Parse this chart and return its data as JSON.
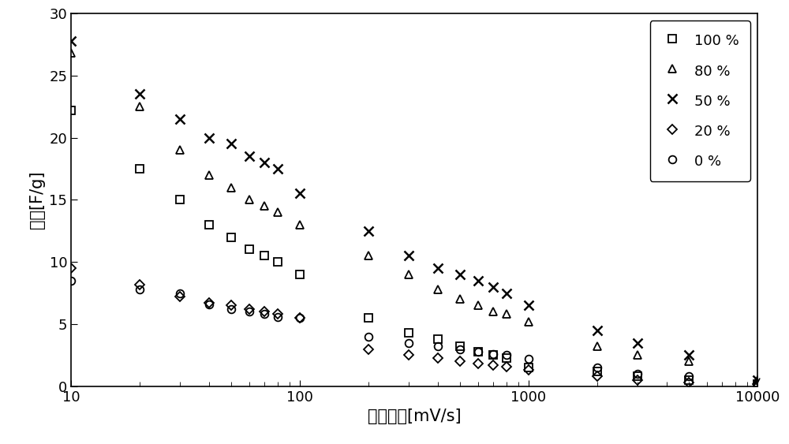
{
  "series": {
    "100%": {
      "marker": "s",
      "label": "100 %",
      "x": [
        10,
        20,
        30,
        40,
        50,
        60,
        70,
        80,
        100,
        200,
        300,
        400,
        500,
        600,
        700,
        800,
        1000,
        2000,
        3000,
        5000,
        10000
      ],
      "y": [
        22.2,
        17.5,
        15.0,
        13.0,
        12.0,
        11.0,
        10.5,
        10.0,
        9.0,
        5.5,
        4.3,
        3.8,
        3.2,
        2.8,
        2.5,
        2.3,
        1.5,
        1.2,
        0.8,
        0.5,
        0.2
      ]
    },
    "80%": {
      "marker": "^",
      "label": "80 %",
      "x": [
        10,
        20,
        30,
        40,
        50,
        60,
        70,
        80,
        100,
        200,
        300,
        400,
        500,
        600,
        700,
        800,
        1000,
        2000,
        3000,
        5000,
        10000
      ],
      "y": [
        26.8,
        22.5,
        19.0,
        17.0,
        16.0,
        15.0,
        14.5,
        14.0,
        13.0,
        10.5,
        9.0,
        7.8,
        7.0,
        6.5,
        6.0,
        5.8,
        5.2,
        3.2,
        2.5,
        2.0,
        0.5
      ]
    },
    "50%": {
      "marker": "x",
      "label": "50 %",
      "x": [
        10,
        20,
        30,
        40,
        50,
        60,
        70,
        80,
        100,
        200,
        300,
        400,
        500,
        600,
        700,
        800,
        1000,
        2000,
        3000,
        5000,
        10000
      ],
      "y": [
        27.8,
        23.5,
        21.5,
        20.0,
        19.5,
        18.5,
        18.0,
        17.5,
        15.5,
        12.5,
        10.5,
        9.5,
        9.0,
        8.5,
        8.0,
        7.5,
        6.5,
        4.5,
        3.5,
        2.5,
        0.5
      ]
    },
    "20%": {
      "marker": "D",
      "label": "20 %",
      "x": [
        10,
        20,
        30,
        40,
        50,
        60,
        70,
        80,
        100,
        200,
        300,
        400,
        500,
        600,
        700,
        800,
        1000,
        2000,
        3000,
        5000,
        10000
      ],
      "y": [
        9.5,
        8.2,
        7.2,
        6.7,
        6.5,
        6.2,
        6.0,
        5.8,
        5.5,
        3.0,
        2.5,
        2.3,
        2.0,
        1.8,
        1.7,
        1.6,
        1.3,
        0.8,
        0.5,
        0.3,
        0.15
      ]
    },
    "0%": {
      "marker": "o",
      "label": "0 %",
      "x": [
        10,
        20,
        30,
        40,
        50,
        60,
        70,
        80,
        100,
        200,
        300,
        400,
        500,
        600,
        700,
        800,
        1000,
        2000,
        3000,
        5000,
        10000
      ],
      "y": [
        8.5,
        7.8,
        7.5,
        6.6,
        6.2,
        6.0,
        5.8,
        5.6,
        5.5,
        4.0,
        3.5,
        3.2,
        3.0,
        2.8,
        2.6,
        2.5,
        2.2,
        1.5,
        1.0,
        0.8,
        0.2
      ]
    }
  },
  "xlabel": "扫描速度[mV/s]",
  "ylabel": "电容[F/g]",
  "xlim": [
    10,
    10000
  ],
  "ylim": [
    0,
    30
  ],
  "yticks": [
    0,
    5,
    10,
    15,
    20,
    25,
    30
  ],
  "background_color": "#ffffff",
  "marker_size": 7,
  "font_size_label": 15,
  "font_size_tick": 13,
  "font_size_legend": 13
}
